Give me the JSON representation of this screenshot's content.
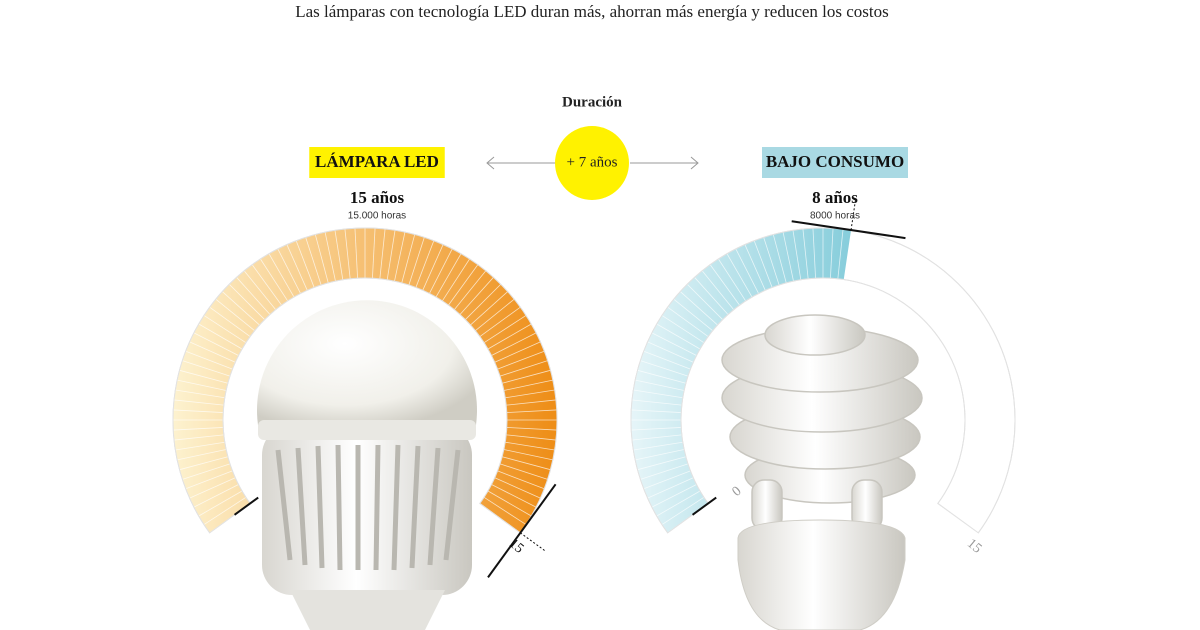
{
  "subtitle": "Las lámparas con tecnología LED duran más, ahorran más energía y reducen los costos",
  "comparison": {
    "title": "Duración",
    "difference": "+ 7 años"
  },
  "gauges": [
    {
      "label": "LÁMPARA LED",
      "label_color": "#fff200",
      "value_label": "15 años",
      "detail": "15.000 horas",
      "value": 15,
      "ticks": [
        0,
        15
      ],
      "colors": [
        "#fdf2cf",
        "#ee8d16"
      ]
    },
    {
      "label": "BAJO CONSUMO",
      "label_color": "#a9d9e3",
      "value_label": "8 años",
      "detail": "8000 horas",
      "value": 8,
      "ticks": [
        0,
        15
      ],
      "colors": [
        "#e6f5f8",
        "#86cddb"
      ]
    }
  ]
}
